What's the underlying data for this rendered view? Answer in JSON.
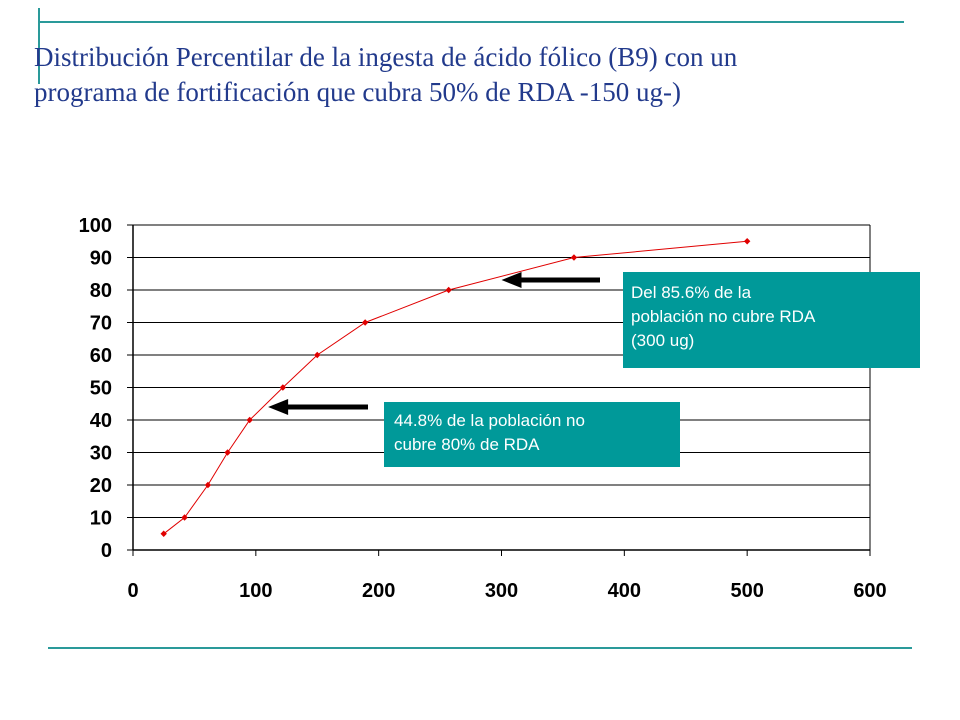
{
  "title": {
    "line1": "Distribución Percentilar de la ingesta de  ácido fólico (B9) con un",
    "line2": "programa de fortificación que cubra 50% de RDA -150 ug-)"
  },
  "colors": {
    "accent": "#2a9a9a",
    "title": "#223a8c",
    "series": "#e00000",
    "note_bg": "#009999"
  },
  "chart_data": {
    "type": "line",
    "xlim": [
      0,
      600
    ],
    "ylim": [
      0,
      100
    ],
    "x_ticks": [
      0,
      100,
      200,
      300,
      400,
      500,
      600
    ],
    "y_ticks": [
      0,
      10,
      20,
      30,
      40,
      50,
      60,
      70,
      80,
      90,
      100
    ],
    "grid": "horizontal",
    "series": [
      {
        "x": [
          25,
          42,
          61,
          77,
          95,
          122,
          150,
          189,
          257,
          359,
          500
        ],
        "y": [
          5,
          10,
          20,
          30,
          40,
          50,
          60,
          70,
          80,
          90,
          95
        ]
      }
    ],
    "annotations": [
      {
        "text_line1": "Del 85.6% de la",
        "text_line2": "población no cubre RDA",
        "text_line3": "(300 ug)",
        "arrow_to": [
          300,
          83
        ]
      },
      {
        "text_line1": "44.8% de la población no",
        "text_line2": "cubre 80% de RDA",
        "arrow_to": [
          110,
          44
        ]
      }
    ]
  }
}
